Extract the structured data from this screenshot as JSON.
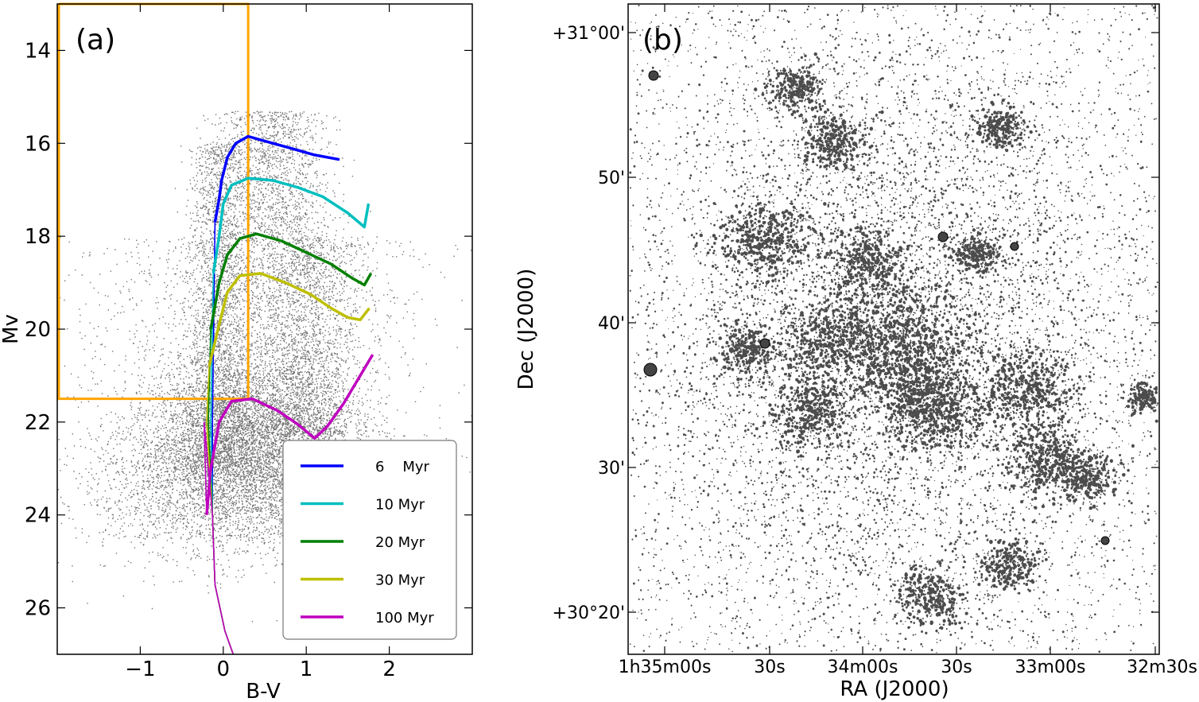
{
  "chart_data": [
    {
      "type": "scatter",
      "panel_label": "(a)",
      "xlabel": "B-V",
      "ylabel": "Mv",
      "xlim": [
        -2.0,
        3.0
      ],
      "ylim": [
        27.0,
        13.0
      ],
      "y_inverted": true,
      "xticks": [
        -1,
        0,
        1,
        2
      ],
      "xtick_labels": [
        "−1",
        "0",
        "1",
        "2"
      ],
      "yticks": [
        14,
        16,
        18,
        20,
        22,
        24,
        26
      ],
      "ytick_labels": [
        "14",
        "16",
        "18",
        "20",
        "22",
        "24",
        "26"
      ],
      "grid": false,
      "legend_position": "lower-right",
      "selection_box": {
        "color": "#ffa500",
        "x_range": [
          -2.0,
          0.3
        ],
        "y_range": [
          13.0,
          21.5
        ]
      },
      "density": {
        "description": "field stars",
        "color": "#000000",
        "core_x": 0.2,
        "core_y": 22.8
      },
      "series": [
        {
          "name": "6    Myr",
          "color": "#0000ff",
          "points": [
            [
              -0.1,
              17.7
            ],
            [
              -0.05,
              17.2
            ],
            [
              -0.02,
              16.8
            ],
            [
              0.05,
              16.3
            ],
            [
              0.15,
              16.0
            ],
            [
              0.3,
              15.85
            ],
            [
              0.5,
              15.95
            ],
            [
              0.8,
              16.1
            ],
            [
              1.1,
              16.25
            ],
            [
              1.4,
              16.35
            ]
          ]
        },
        {
          "name": "10 Myr",
          "color": "#00bfbf",
          "points": [
            [
              -0.12,
              18.8
            ],
            [
              -0.05,
              18.0
            ],
            [
              0.0,
              17.3
            ],
            [
              0.1,
              16.9
            ],
            [
              0.3,
              16.75
            ],
            [
              0.6,
              16.8
            ],
            [
              0.9,
              16.95
            ],
            [
              1.2,
              17.15
            ],
            [
              1.5,
              17.5
            ],
            [
              1.7,
              17.8
            ],
            [
              1.75,
              17.3
            ]
          ]
        },
        {
          "name": "20 Myr",
          "color": "#008000",
          "points": [
            [
              -0.15,
              20.0
            ],
            [
              -0.05,
              19.0
            ],
            [
              0.05,
              18.4
            ],
            [
              0.2,
              18.05
            ],
            [
              0.4,
              17.95
            ],
            [
              0.7,
              18.1
            ],
            [
              1.0,
              18.35
            ],
            [
              1.3,
              18.6
            ],
            [
              1.55,
              18.9
            ],
            [
              1.7,
              19.05
            ],
            [
              1.78,
              18.8
            ]
          ]
        },
        {
          "name": "30 Myr",
          "color": "#bfbf00",
          "points": [
            [
              -0.17,
              20.8
            ],
            [
              -0.05,
              19.9
            ],
            [
              0.05,
              19.2
            ],
            [
              0.2,
              18.85
            ],
            [
              0.45,
              18.8
            ],
            [
              0.75,
              19.0
            ],
            [
              1.05,
              19.25
            ],
            [
              1.3,
              19.55
            ],
            [
              1.5,
              19.75
            ],
            [
              1.65,
              19.8
            ],
            [
              1.76,
              19.55
            ]
          ]
        },
        {
          "name": "100 Myr",
          "color": "#bf00bf",
          "points": [
            [
              -0.2,
              24.0
            ],
            [
              -0.15,
              23.0
            ],
            [
              -0.05,
              22.0
            ],
            [
              0.1,
              21.55
            ],
            [
              0.35,
              21.5
            ],
            [
              0.65,
              21.75
            ],
            [
              0.9,
              22.05
            ],
            [
              1.1,
              22.35
            ],
            [
              1.25,
              22.1
            ],
            [
              1.45,
              21.6
            ],
            [
              1.65,
              21.0
            ],
            [
              1.8,
              20.55
            ]
          ]
        }
      ]
    },
    {
      "type": "scatter",
      "panel_label": "(b)",
      "xlabel": "RA (J2000)",
      "ylabel": "Dec (J2000)",
      "xticks": [
        "1h35m00s",
        "30s",
        "34m00s",
        "30s",
        "33m00s",
        "32m30s"
      ],
      "yticks": [
        "+30°20'",
        "30'",
        "40'",
        "50'",
        "+31°00'"
      ],
      "grid": false,
      "description": "spatial map of selected young stars"
    }
  ]
}
